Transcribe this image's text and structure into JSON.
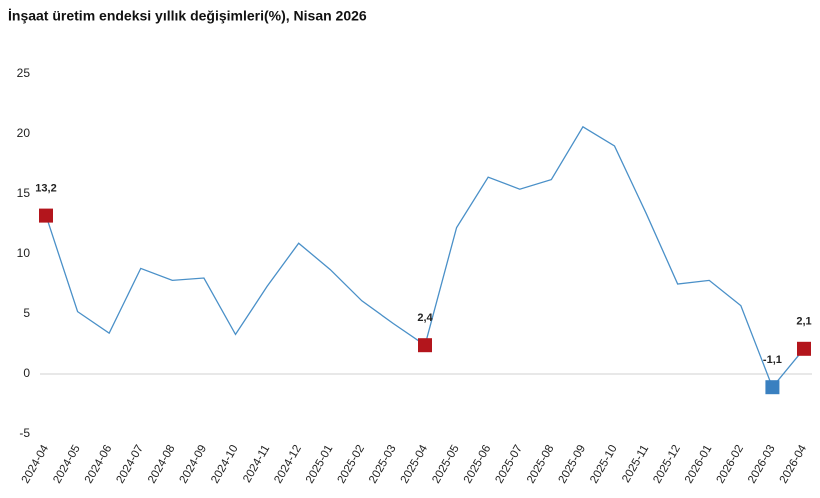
{
  "chart_data": {
    "type": "line",
    "title": "İnşaat üretim endeksi yıllık değişimleri(%), Nisan 2026",
    "categories": [
      "2024-04",
      "2024-05",
      "2024-06",
      "2024-07",
      "2024-08",
      "2024-09",
      "2024-10",
      "2024-11",
      "2024-12",
      "2025-01",
      "2025-02",
      "2025-03",
      "2025-04",
      "2025-05",
      "2025-06",
      "2025-07",
      "2025-08",
      "2025-09",
      "2025-10",
      "2025-11",
      "2025-12",
      "2026-01",
      "2026-02",
      "2026-03",
      "2026-04"
    ],
    "values": [
      13.2,
      5.2,
      3.4,
      8.8,
      7.8,
      8.0,
      3.3,
      7.3,
      10.9,
      8.7,
      6.1,
      4.2,
      2.4,
      12.2,
      16.4,
      15.4,
      16.2,
      20.6,
      19.0,
      13.4,
      7.5,
      7.8,
      5.7,
      -1.1,
      2.1
    ],
    "value_labels": [
      "13,2",
      null,
      null,
      null,
      null,
      null,
      null,
      null,
      null,
      null,
      null,
      null,
      "2,4",
      null,
      null,
      null,
      null,
      null,
      null,
      null,
      null,
      null,
      null,
      "-1,1",
      "2,1"
    ],
    "marker_colors": [
      "#b3151c",
      null,
      null,
      null,
      null,
      null,
      null,
      null,
      null,
      null,
      null,
      null,
      "#b3151c",
      null,
      null,
      null,
      null,
      null,
      null,
      null,
      null,
      null,
      null,
      "#3a80c0",
      "#b3151c"
    ],
    "color": "#4a90c8",
    "ylim": [
      -5,
      25
    ],
    "yticks": [
      -5,
      0,
      5,
      10,
      15,
      20,
      25
    ]
  }
}
